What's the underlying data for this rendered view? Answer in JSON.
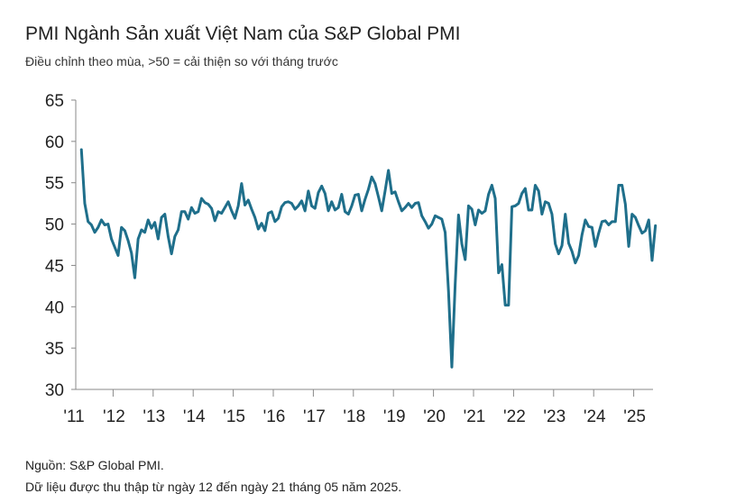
{
  "chart_data": {
    "type": "line",
    "title": "PMI Ngành Sản xuất Việt Nam của S&P Global PMI",
    "subtitle": "Điều chỉnh theo mùa, >50 = cải thiện so với tháng trước",
    "xlabel": "",
    "ylabel": "",
    "ylim": [
      30,
      65
    ],
    "yticks": [
      "30",
      "35",
      "40",
      "45",
      "50",
      "55",
      "60",
      "65"
    ],
    "xticks": [
      "'11",
      "'12",
      "'13",
      "'14",
      "'15",
      "'16",
      "'17",
      "'18",
      "'19",
      "'20",
      "'21",
      "'22",
      "'23",
      "'24",
      "'25"
    ],
    "x_start": "2011-03",
    "x_end": "2025-05",
    "grid": false,
    "series": [
      {
        "color": "#1f6f8b",
        "values": [
          59.0,
          52.5,
          50.3,
          49.9,
          49.0,
          49.6,
          50.5,
          49.9,
          50.0,
          48.2,
          47.2,
          46.2,
          49.6,
          49.2,
          48.0,
          46.5,
          43.5,
          48.2,
          49.3,
          49.0,
          50.5,
          49.5,
          50.2,
          48.2,
          50.8,
          51.2,
          48.5,
          46.4,
          48.5,
          49.3,
          51.5,
          51.5,
          50.6,
          52.0,
          51.3,
          51.5,
          53.1,
          52.6,
          52.4,
          51.9,
          50.4,
          51.5,
          51.3,
          52.0,
          52.7,
          51.6,
          50.7,
          52.2,
          54.9,
          52.3,
          52.9,
          51.8,
          50.8,
          49.4,
          50.1,
          49.2,
          51.3,
          51.5,
          50.3,
          50.7,
          52.1,
          52.6,
          52.7,
          52.5,
          51.8,
          52.2,
          52.8,
          51.6,
          54.0,
          52.2,
          51.9,
          53.8,
          54.6,
          53.7,
          51.6,
          52.7,
          51.7,
          52.0,
          53.6,
          51.5,
          51.2,
          52.2,
          53.5,
          53.6,
          51.6,
          53.0,
          54.2,
          55.7,
          54.9,
          53.3,
          51.6,
          54.0,
          56.5,
          53.7,
          53.9,
          52.7,
          51.6,
          52.0,
          52.5,
          52.0,
          52.5,
          52.6,
          51.0,
          50.3,
          49.5,
          50.0,
          51.0,
          50.8,
          50.6,
          49.0,
          41.9,
          32.7,
          42.7,
          51.1,
          47.6,
          45.7,
          52.2,
          51.8,
          49.9,
          51.7,
          51.3,
          51.6,
          53.6,
          54.7,
          53.1,
          44.1,
          45.1,
          40.2,
          40.2,
          52.1,
          52.2,
          52.5,
          53.7,
          54.3,
          51.7,
          51.7,
          54.7,
          54.0,
          51.2,
          52.7,
          52.5,
          51.2,
          47.6,
          46.4,
          47.4,
          51.2,
          47.7,
          46.7,
          45.3,
          46.2,
          48.7,
          50.5,
          49.7,
          49.6,
          47.3,
          48.9,
          50.3,
          50.4,
          49.9,
          50.3,
          50.3,
          54.7,
          54.7,
          52.4,
          47.3,
          51.2,
          50.8,
          49.8,
          48.9,
          49.2,
          50.5,
          45.6,
          49.8
        ]
      }
    ]
  },
  "footer": {
    "source": "Nguồn: S&P Global PMI.",
    "note": "Dữ liệu được thu thập từ ngày 12 đến ngày 21 tháng 05 năm 2025."
  }
}
